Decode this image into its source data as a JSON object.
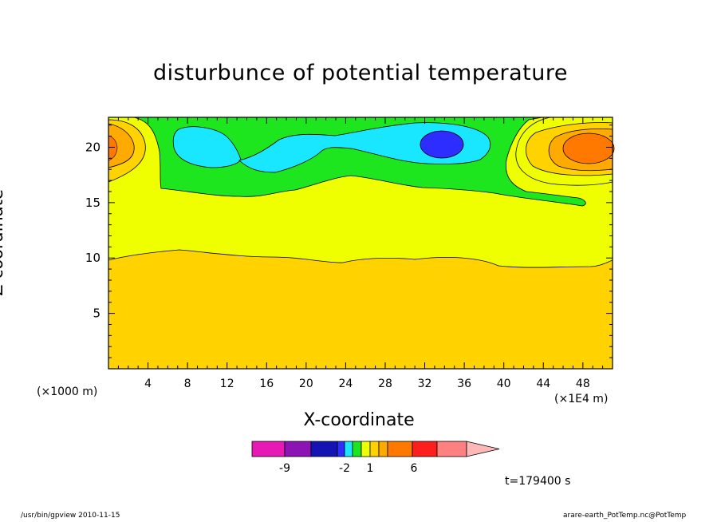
{
  "chart_data": {
    "type": "heatmap",
    "title": "disturbunce of potential temperature",
    "xlabel": "X-coordinate",
    "ylabel": "Z-coordinate",
    "x_unit_left": "(×1000 m)",
    "x_unit_right": "(×1E4 m)",
    "x_ticks": [
      "4",
      "8",
      "12",
      "16",
      "20",
      "24",
      "28",
      "32",
      "36",
      "40",
      "44",
      "48"
    ],
    "y_ticks": [
      "5",
      "10",
      "15",
      "20"
    ],
    "xlim": [
      0,
      51
    ],
    "ylim": [
      0,
      22.7
    ],
    "colorbar": {
      "tick_labels": [
        "-9",
        "-2",
        "1",
        "6"
      ],
      "colors": [
        "#e619b4",
        "#8c14b4",
        "#1414b4",
        "#2d2dff",
        "#19e6ff",
        "#1ee61e",
        "#f0ff00",
        "#ffd200",
        "#ffaa00",
        "#ff7800",
        "#ff1e1e",
        "#ff8080",
        "#ffb8b8"
      ]
    },
    "regions": [
      {
        "level": "0 to 1",
        "color": "#f0ff00"
      },
      {
        "level": "1 to 2",
        "color": "#ffd200"
      },
      {
        "level": "-1 to 0",
        "color": "#1ee61e"
      },
      {
        "level": "-2 to -1",
        "color": "#19e6ff"
      },
      {
        "level": "-3 to -2",
        "color": "#2d2dff"
      },
      {
        "level": "2 to 3",
        "color": "#ffaa00"
      },
      {
        "level": "3 to 4",
        "color": "#ff7800"
      }
    ],
    "time_label": "t=179400 s"
  },
  "footer": {
    "left": "/usr/bin/gpview   2010-11-15",
    "right": "arare-earth_PotTemp.nc@PotTemp"
  }
}
